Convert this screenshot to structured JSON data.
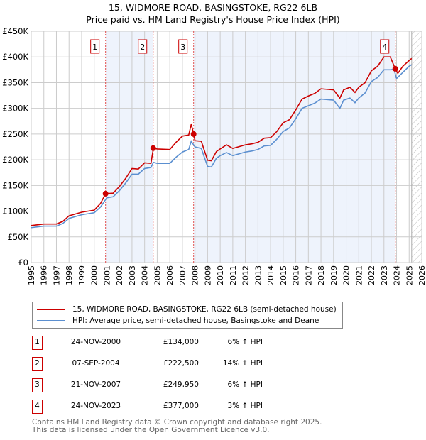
{
  "chart_data": {
    "type": "line",
    "title": "15, WIDMORE ROAD, BASINGSTOKE, RG22 6LB",
    "subtitle": "Price paid vs. HM Land Registry's House Price Index (HPI)",
    "xlim": [
      1995,
      2026
    ],
    "ylim": [
      0,
      450000
    ],
    "y_ticks": [
      {
        "v": 0,
        "label": "£0"
      },
      {
        "v": 50000,
        "label": "£50K"
      },
      {
        "v": 100000,
        "label": "£100K"
      },
      {
        "v": 150000,
        "label": "£150K"
      },
      {
        "v": 200000,
        "label": "£200K"
      },
      {
        "v": 250000,
        "label": "£250K"
      },
      {
        "v": 300000,
        "label": "£300K"
      },
      {
        "v": 350000,
        "label": "£350K"
      },
      {
        "v": 400000,
        "label": "£400K"
      },
      {
        "v": 450000,
        "label": "£450K"
      }
    ],
    "x_ticks": [
      "1995",
      "1996",
      "1997",
      "1998",
      "1999",
      "2000",
      "2001",
      "2002",
      "2003",
      "2004",
      "2005",
      "2006",
      "2007",
      "2008",
      "2009",
      "2010",
      "2011",
      "2012",
      "2013",
      "2014",
      "2015",
      "2016",
      "2017",
      "2018",
      "2019",
      "2020",
      "2021",
      "2022",
      "2023",
      "2024",
      "2025",
      "2026"
    ],
    "grid": true,
    "forecast_hatch_from": 2025.2,
    "series": [
      {
        "name": "15, WIDMORE ROAD, BASINGSTOKE, RG22 6LB (semi-detached house)",
        "color": "#cc0000",
        "points": [
          [
            1995,
            72
          ],
          [
            1996,
            75
          ],
          [
            1997,
            75
          ],
          [
            1997.5,
            80
          ],
          [
            1998,
            91
          ],
          [
            1999,
            98
          ],
          [
            2000,
            102
          ],
          [
            2000.5,
            115
          ],
          [
            2000.9,
            134
          ],
          [
            2001.5,
            135
          ],
          [
            2002,
            148
          ],
          [
            2002.5,
            164
          ],
          [
            2003,
            183
          ],
          [
            2003.5,
            182
          ],
          [
            2004,
            194
          ],
          [
            2004.5,
            193
          ],
          [
            2004.7,
            222.5
          ],
          [
            2005,
            221
          ],
          [
            2006,
            220
          ],
          [
            2006.5,
            234
          ],
          [
            2007,
            246
          ],
          [
            2007.5,
            248
          ],
          [
            2007.7,
            269
          ],
          [
            2007.9,
            250
          ],
          [
            2008,
            237
          ],
          [
            2008.5,
            236
          ],
          [
            2009,
            199
          ],
          [
            2009.3,
            198
          ],
          [
            2009.7,
            216
          ],
          [
            2010,
            221
          ],
          [
            2010.5,
            229
          ],
          [
            2011,
            222
          ],
          [
            2012,
            229
          ],
          [
            2012.5,
            231
          ],
          [
            2013,
            234
          ],
          [
            2013.5,
            242
          ],
          [
            2014,
            243
          ],
          [
            2014.5,
            255
          ],
          [
            2015,
            272
          ],
          [
            2015.5,
            278
          ],
          [
            2016,
            297
          ],
          [
            2016.5,
            318
          ],
          [
            2017,
            324
          ],
          [
            2017.5,
            329
          ],
          [
            2018,
            338
          ],
          [
            2018.5,
            337
          ],
          [
            2019,
            336
          ],
          [
            2019.5,
            320
          ],
          [
            2019.8,
            336
          ],
          [
            2020.3,
            341
          ],
          [
            2020.7,
            331
          ],
          [
            2021,
            341
          ],
          [
            2021.5,
            350
          ],
          [
            2022,
            373
          ],
          [
            2022.5,
            382
          ],
          [
            2023,
            400
          ],
          [
            2023.5,
            400
          ],
          [
            2023.9,
            377
          ],
          [
            2024.1,
            368
          ],
          [
            2024.5,
            382
          ],
          [
            2025,
            393
          ],
          [
            2025.2,
            397
          ]
        ]
      },
      {
        "name": "HPI: Average price, semi-detached house, Basingstoke and Deane",
        "color": "#5b8fd0",
        "points": [
          [
            1995,
            68
          ],
          [
            1996,
            71
          ],
          [
            1997,
            71
          ],
          [
            1997.5,
            76
          ],
          [
            1998,
            86
          ],
          [
            1999,
            93
          ],
          [
            2000,
            97
          ],
          [
            2000.5,
            108
          ],
          [
            2001,
            126
          ],
          [
            2001.5,
            128
          ],
          [
            2002,
            140
          ],
          [
            2002.5,
            155
          ],
          [
            2003,
            172
          ],
          [
            2003.5,
            172
          ],
          [
            2004,
            183
          ],
          [
            2004.5,
            185
          ],
          [
            2004.7,
            195
          ],
          [
            2005,
            193
          ],
          [
            2006,
            193
          ],
          [
            2006.5,
            205
          ],
          [
            2007,
            215
          ],
          [
            2007.5,
            220
          ],
          [
            2007.7,
            236
          ],
          [
            2008,
            225
          ],
          [
            2008.5,
            222
          ],
          [
            2009,
            187
          ],
          [
            2009.3,
            186
          ],
          [
            2009.7,
            203
          ],
          [
            2010,
            208
          ],
          [
            2010.5,
            214
          ],
          [
            2011,
            208
          ],
          [
            2012,
            215
          ],
          [
            2012.5,
            217
          ],
          [
            2013,
            220
          ],
          [
            2013.5,
            227
          ],
          [
            2014,
            228
          ],
          [
            2014.5,
            240
          ],
          [
            2015,
            255
          ],
          [
            2015.5,
            262
          ],
          [
            2016,
            280
          ],
          [
            2016.5,
            300
          ],
          [
            2017,
            305
          ],
          [
            2017.5,
            310
          ],
          [
            2018,
            318
          ],
          [
            2018.5,
            317
          ],
          [
            2019,
            316
          ],
          [
            2019.5,
            300
          ],
          [
            2019.8,
            316
          ],
          [
            2020.3,
            320
          ],
          [
            2020.7,
            311
          ],
          [
            2021,
            320
          ],
          [
            2021.5,
            330
          ],
          [
            2022,
            352
          ],
          [
            2022.5,
            360
          ],
          [
            2023,
            375
          ],
          [
            2023.5,
            375
          ],
          [
            2023.8,
            376
          ],
          [
            2024,
            358
          ],
          [
            2024.5,
            370
          ],
          [
            2025,
            382
          ],
          [
            2025.2,
            385
          ]
        ]
      }
    ],
    "sales": [
      {
        "id": "1",
        "x": 2000.9,
        "y": 134000,
        "date": "24-NOV-2000",
        "price": "£134,000",
        "hpi": "6% ↑ HPI"
      },
      {
        "id": "2",
        "x": 2004.68,
        "y": 222500,
        "date": "07-SEP-2004",
        "price": "£222,500",
        "hpi": "14% ↑ HPI"
      },
      {
        "id": "3",
        "x": 2007.89,
        "y": 249950,
        "date": "21-NOV-2007",
        "price": "£249,950",
        "hpi": "6% ↑ HPI"
      },
      {
        "id": "4",
        "x": 2023.9,
        "y": 377000,
        "date": "24-NOV-2023",
        "price": "£377,000",
        "hpi": "3% ↑ HPI"
      }
    ]
  },
  "footer": [
    "Contains HM Land Registry data © Crown copyright and database right 2025.",
    "This data is licensed under the Open Government Licence v3.0."
  ]
}
